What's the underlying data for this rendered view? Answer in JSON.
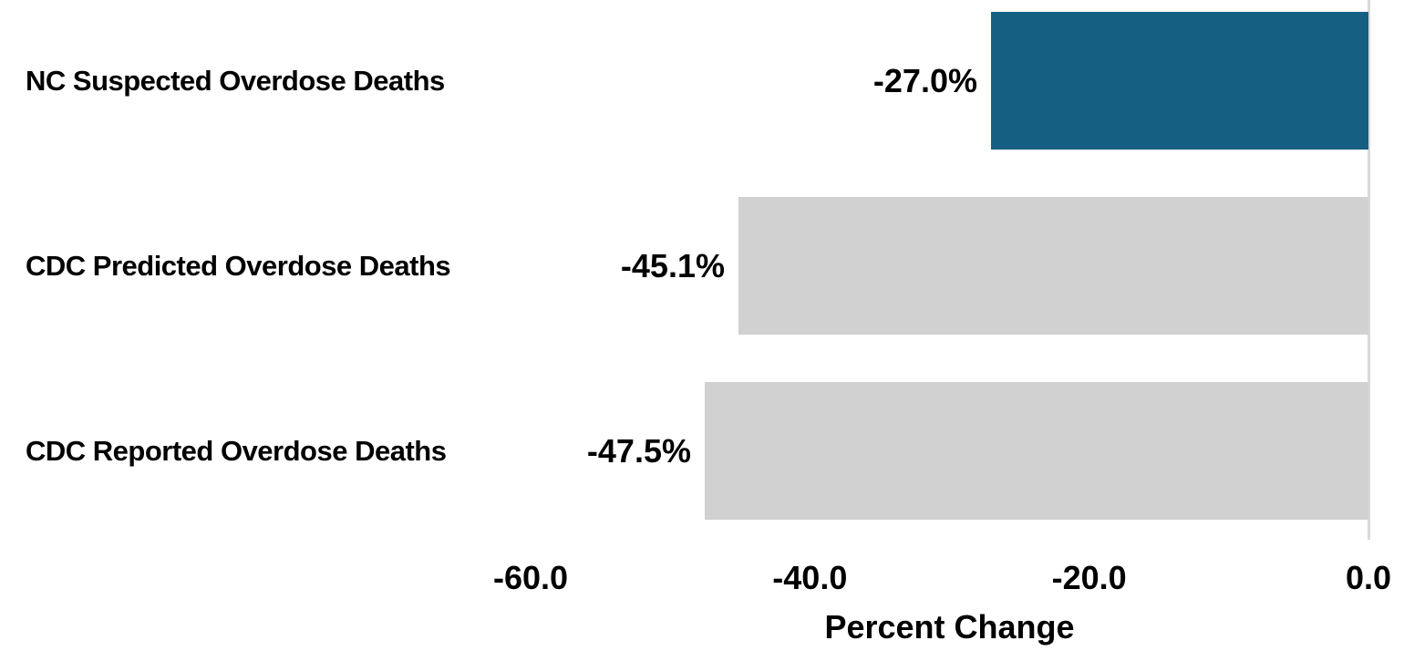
{
  "chart_data": {
    "type": "bar",
    "orientation": "horizontal",
    "title": "",
    "categories": [
      "NC Suspected Overdose Deaths",
      "CDC Predicted Overdose Deaths",
      "CDC Reported Overdose Deaths"
    ],
    "values": [
      -27.0,
      -45.1,
      -47.5
    ],
    "value_labels": [
      "-27.0%",
      "-45.1%",
      "-47.5%"
    ],
    "bar_colors": [
      "#156082",
      "#D1D1D1",
      "#D1D1D1"
    ],
    "xlabel": "Percent Change",
    "ylabel": "",
    "xlim": [
      -60,
      0
    ],
    "xticks": [
      -60,
      -40,
      -20,
      0
    ],
    "xtick_labels": [
      "-60.0",
      "-40.0",
      "-20.0",
      "0.0"
    ],
    "grid": false,
    "legend_position": "none",
    "zero_axis_line_color": "#D9D9D9",
    "text_color": "#000000",
    "background_color": "#FFFFFF",
    "value_label_position": "outside-end"
  }
}
